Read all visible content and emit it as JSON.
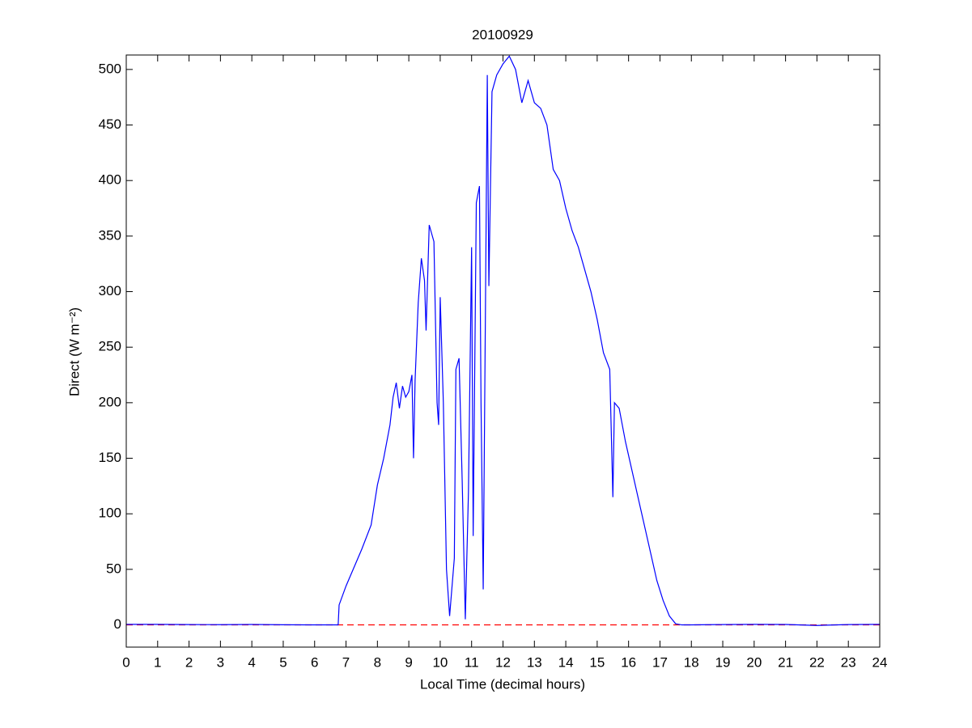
{
  "chart_data": {
    "type": "line",
    "title": "20100929",
    "xlabel": "Local Time (decimal hours)",
    "ylabel": "Direct (W m⁻²)",
    "xlim": [
      0,
      24
    ],
    "ylim": [
      -20,
      513
    ],
    "xticks": [
      0,
      1,
      2,
      3,
      4,
      5,
      6,
      7,
      8,
      9,
      10,
      11,
      12,
      13,
      14,
      15,
      16,
      17,
      18,
      19,
      20,
      21,
      22,
      23,
      24
    ],
    "yticks": [
      0,
      50,
      100,
      150,
      200,
      250,
      300,
      350,
      400,
      450,
      500
    ],
    "hline": {
      "value": 0,
      "color": "#ff0000"
    },
    "series": [
      {
        "name": "Direct",
        "color": "#0000ff",
        "x": [
          0,
          1,
          2,
          3,
          4,
          5,
          6,
          6.75,
          6.78,
          7.0,
          7.5,
          7.8,
          8.0,
          8.2,
          8.4,
          8.5,
          8.6,
          8.7,
          8.8,
          8.9,
          9.0,
          9.1,
          9.15,
          9.2,
          9.3,
          9.4,
          9.5,
          9.55,
          9.65,
          9.8,
          9.9,
          9.95,
          10.0,
          10.1,
          10.2,
          10.3,
          10.45,
          10.5,
          10.6,
          10.7,
          10.8,
          10.9,
          11.0,
          11.05,
          11.15,
          11.25,
          11.3,
          11.37,
          11.5,
          11.55,
          11.65,
          11.8,
          12.0,
          12.2,
          12.4,
          12.6,
          12.8,
          13.0,
          13.2,
          13.4,
          13.6,
          13.8,
          14.0,
          14.2,
          14.4,
          14.6,
          14.8,
          15.0,
          15.2,
          15.4,
          15.5,
          15.55,
          15.7,
          15.9,
          16.1,
          16.3,
          16.5,
          16.7,
          16.9,
          17.1,
          17.3,
          17.5,
          17.7,
          18,
          19,
          20,
          21,
          22,
          23,
          24
        ],
        "values": [
          0.5,
          0.5,
          0.3,
          0.2,
          0.4,
          0.1,
          0,
          0,
          18,
          35,
          68,
          90,
          126,
          150,
          180,
          205,
          218,
          195,
          215,
          205,
          210,
          225,
          150,
          220,
          290,
          330,
          310,
          265,
          360,
          345,
          200,
          180,
          295,
          200,
          50,
          8,
          60,
          230,
          240,
          130,
          5,
          120,
          340,
          80,
          380,
          395,
          200,
          32,
          495,
          305,
          480,
          495,
          505,
          512,
          500,
          470,
          490,
          470,
          465,
          450,
          410,
          400,
          375,
          355,
          340,
          320,
          300,
          275,
          245,
          230,
          115,
          200,
          195,
          165,
          140,
          115,
          90,
          65,
          40,
          22,
          8,
          1,
          0,
          0,
          0.3,
          0.5,
          0.4,
          -0.5,
          0.3,
          0.5
        ]
      }
    ]
  }
}
